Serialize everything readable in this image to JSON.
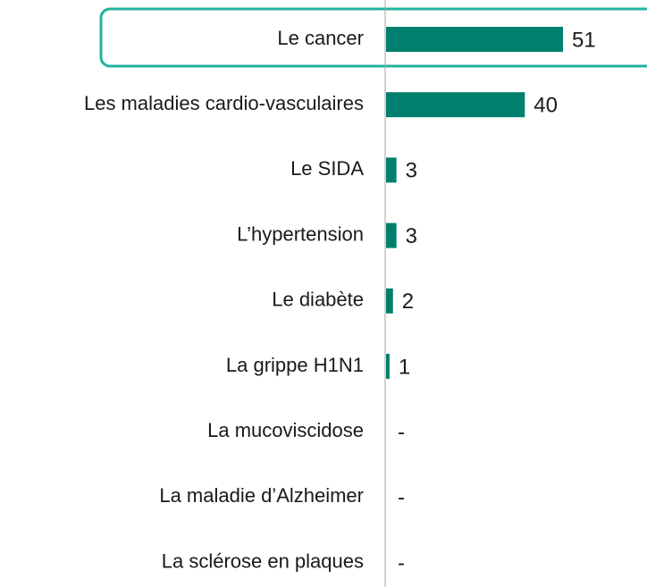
{
  "chart_data": {
    "type": "bar",
    "orientation": "horizontal",
    "categories": [
      "Le cancer",
      "Les maladies cardio-vasculaires",
      "Le SIDA",
      "L’hypertension",
      "Le diabète",
      "La grippe H1N1",
      "La mucoviscidose",
      "La maladie d’Alzheimer",
      "La sclérose en plaques"
    ],
    "values": [
      51,
      40,
      3,
      3,
      2,
      1,
      null,
      null,
      null
    ],
    "value_labels": [
      "51",
      "40",
      "3",
      "3",
      "2",
      "1",
      "-",
      "-",
      "-"
    ],
    "color": "#007f6e"
  }
}
